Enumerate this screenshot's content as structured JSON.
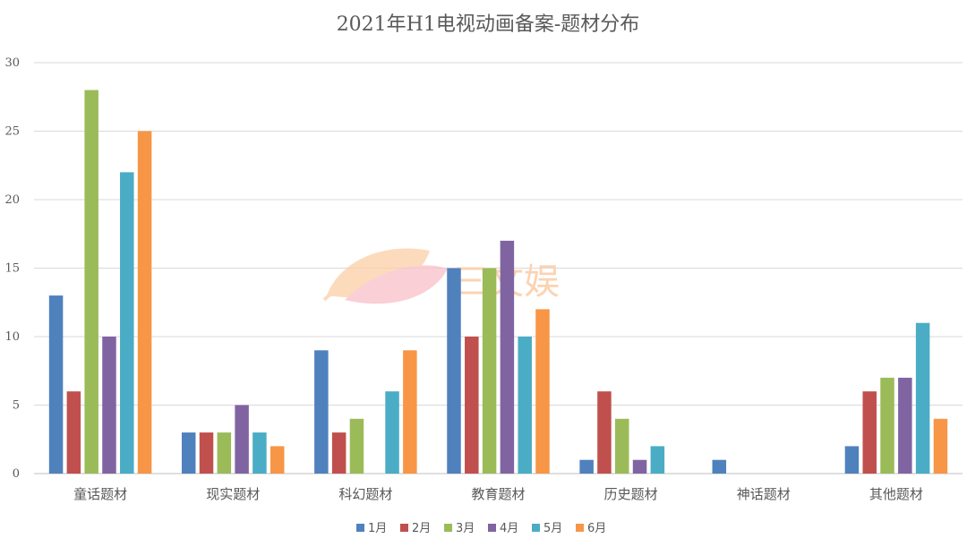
{
  "chart_data": {
    "type": "bar",
    "title": "2021年H1电视动画备案-题材分布",
    "categories": [
      "童话题材",
      "现实题材",
      "科幻题材",
      "教育题材",
      "历史题材",
      "神话题材",
      "其他题材"
    ],
    "series": [
      {
        "name": "1月",
        "color": "#4f81bd",
        "values": [
          13,
          3,
          9,
          15,
          1,
          1,
          2
        ]
      },
      {
        "name": "2月",
        "color": "#c0504d",
        "values": [
          6,
          3,
          3,
          10,
          6,
          0,
          6
        ]
      },
      {
        "name": "3月",
        "color": "#9bbb59",
        "values": [
          28,
          3,
          4,
          15,
          4,
          0,
          7
        ]
      },
      {
        "name": "4月",
        "color": "#8064a2",
        "values": [
          10,
          5,
          0,
          17,
          1,
          0,
          7
        ]
      },
      {
        "name": "5月",
        "color": "#4bacc6",
        "values": [
          22,
          3,
          6,
          10,
          2,
          0,
          11
        ]
      },
      {
        "name": "6月",
        "color": "#f79646",
        "values": [
          25,
          2,
          9,
          12,
          0,
          0,
          4
        ]
      }
    ],
    "yticks": [
      0,
      5,
      10,
      15,
      20,
      25,
      30
    ],
    "ylim": [
      0,
      30
    ],
    "grid": true,
    "legend": "bottom"
  },
  "watermark": {
    "text": "三文娱"
  }
}
